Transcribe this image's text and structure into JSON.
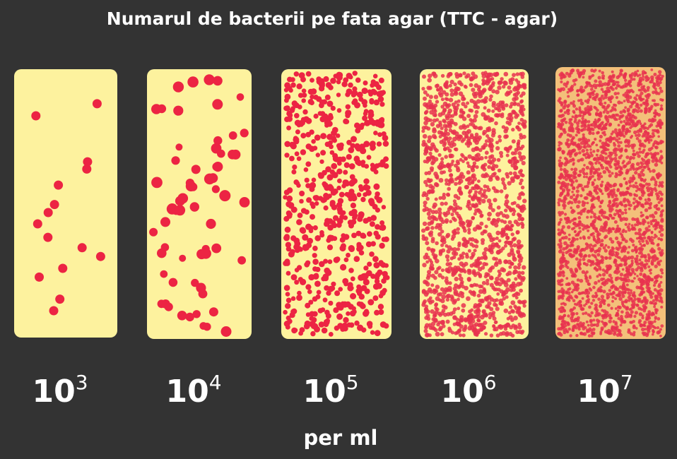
{
  "title": "Numarul de bacterii pe fata agar (TTC - agar)",
  "panels": [
    {
      "base": "10",
      "exponent": "3"
    },
    {
      "base": "10",
      "exponent": "4"
    },
    {
      "base": "10",
      "exponent": "5"
    },
    {
      "base": "10",
      "exponent": "6"
    },
    {
      "base": "10",
      "exponent": "7"
    }
  ],
  "unit": "per ml"
}
